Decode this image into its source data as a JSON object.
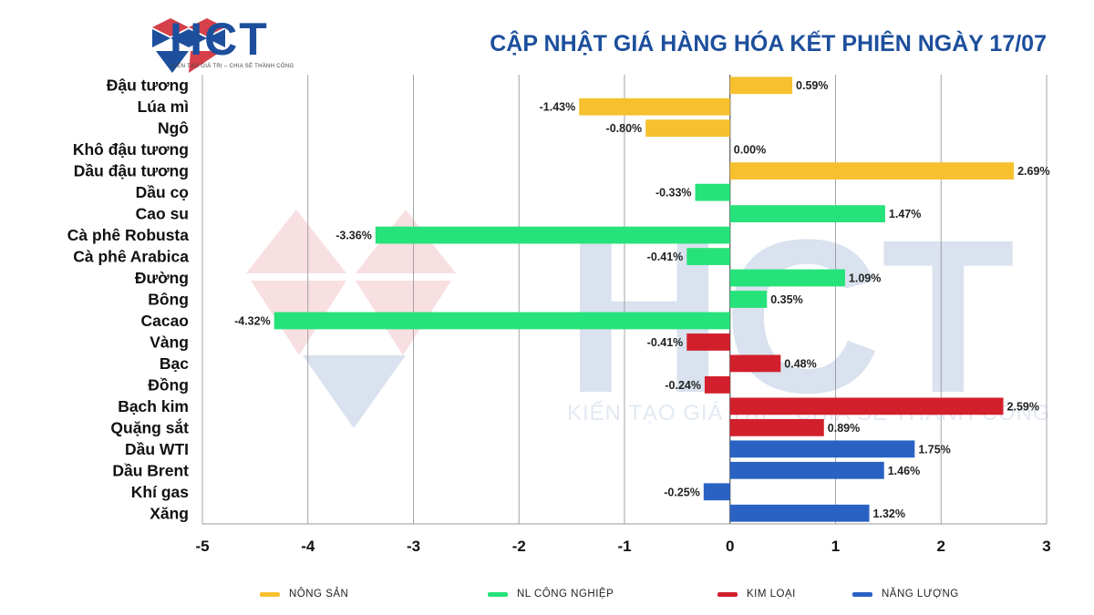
{
  "header": {
    "logo_text": "HCT",
    "logo_tagline": "KIẾN TẠO GIÁ TRỊ – CHIA SẺ THÀNH CÔNG",
    "title": "CẬP NHẬT GIÁ HÀNG HÓA KẾT PHIÊN NGÀY 17/07"
  },
  "watermark": {
    "text": "HCT",
    "tagline": "KIẾN TẠO GIÁ TRỊ – CHIA SẺ THÀNH CÔNG"
  },
  "colors": {
    "brand_blue": "#1d4f9c",
    "brand_red": "#d6404a",
    "nong_san": "#f6c02f",
    "nl_cong_nghiep": "#26e27a",
    "kim_loai": "#d21f2c",
    "nang_luong": "#2a62c4"
  },
  "chart_data": {
    "type": "bar",
    "orientation": "horizontal",
    "categories": [
      "Đậu tương",
      "Lúa mì",
      "Ngô",
      "Khô đậu tương",
      "Dầu đậu tương",
      "Dầu cọ",
      "Cao su",
      "Cà phê Robusta",
      "Cà phê Arabica",
      "Đường",
      "Bông",
      "Cacao",
      "Vàng",
      "Bạc",
      "Đồng",
      "Bạch kim",
      "Quặng sắt",
      "Dầu WTI",
      "Dầu Brent",
      "Khí gas",
      "Xăng"
    ],
    "values": [
      0.59,
      -1.43,
      -0.8,
      0.0,
      2.69,
      -0.33,
      1.47,
      -3.36,
      -0.41,
      1.09,
      0.35,
      -4.32,
      -0.41,
      0.48,
      -0.24,
      2.59,
      0.89,
      1.75,
      1.46,
      -0.25,
      1.32
    ],
    "data_labels": [
      "0.59%",
      "-1.43%",
      "-0.80%",
      "0.00%",
      "2.69%",
      "-0.33%",
      "1.47%",
      "-3.36%",
      "-0.41%",
      "1.09%",
      "0.35%",
      "-4.32%",
      "-0.41%",
      "0.48%",
      "-0.24%",
      "2.59%",
      "0.89%",
      "1.75%",
      "1.46%",
      "-0.25%",
      "1.32%"
    ],
    "groups": [
      "nong_san",
      "nong_san",
      "nong_san",
      "nong_san",
      "nong_san",
      "nl_cong_nghiep",
      "nl_cong_nghiep",
      "nl_cong_nghiep",
      "nl_cong_nghiep",
      "nl_cong_nghiep",
      "nl_cong_nghiep",
      "nl_cong_nghiep",
      "kim_loai",
      "kim_loai",
      "kim_loai",
      "kim_loai",
      "kim_loai",
      "nang_luong",
      "nang_luong",
      "nang_luong",
      "nang_luong"
    ],
    "series": [
      {
        "key": "nong_san",
        "name": "NÔNG SẢN"
      },
      {
        "key": "nl_cong_nghiep",
        "name": "NL CÔNG NGHIỆP"
      },
      {
        "key": "kim_loai",
        "name": "KIM LOẠI"
      },
      {
        "key": "nang_luong",
        "name": "NĂNG LƯỢNG"
      }
    ],
    "x_ticks": [
      "-5",
      "-4",
      "-3",
      "-2",
      "-1",
      "0",
      "1",
      "2",
      "3"
    ],
    "xlim": [
      -5,
      3
    ],
    "grid": "vertical",
    "legend_position": "bottom"
  }
}
